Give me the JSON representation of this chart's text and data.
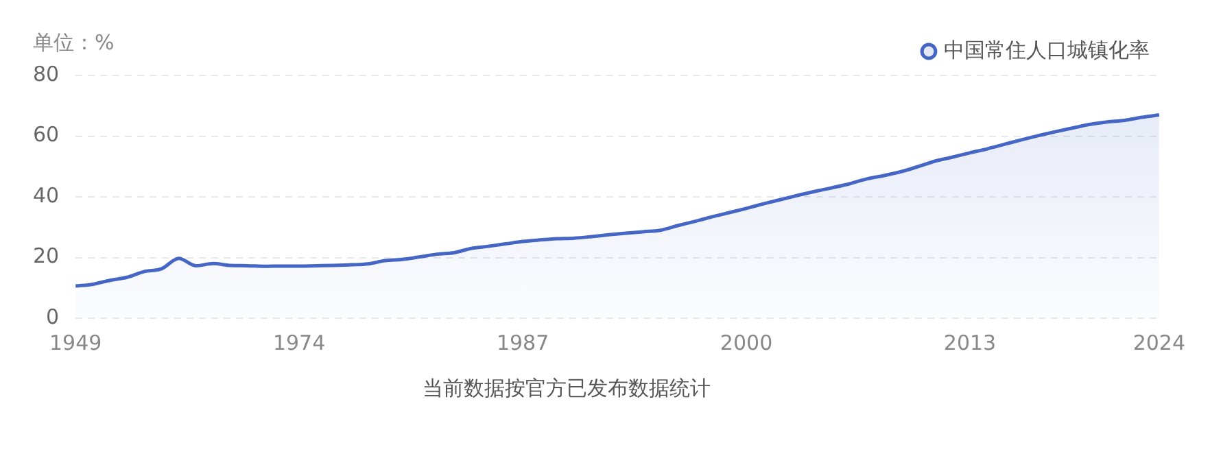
{
  "chart_data": {
    "type": "area",
    "ylabel": "单位：%",
    "annotations": [
      "当前数据按官方已发布数据统计"
    ],
    "categories": [
      "1949",
      null,
      null,
      null,
      null,
      null,
      null,
      null,
      null,
      null,
      null,
      null,
      null,
      "1974",
      null,
      null,
      null,
      null,
      null,
      null,
      null,
      null,
      null,
      null,
      null,
      null,
      "1987",
      null,
      null,
      null,
      null,
      null,
      null,
      null,
      null,
      null,
      null,
      null,
      null,
      "2000",
      null,
      null,
      null,
      null,
      null,
      null,
      null,
      null,
      null,
      null,
      null,
      null,
      "2013",
      null,
      null,
      null,
      null,
      null,
      null,
      null,
      null,
      null,
      null,
      "2024"
    ],
    "series": [
      {
        "name": "中国常住人口城镇化率",
        "color": "#4566c4",
        "values": [
          10.6,
          11.2,
          12.5,
          13.5,
          15.4,
          16.3,
          19.7,
          17.3,
          18.0,
          17.4,
          17.3,
          17.1,
          17.2,
          17.2,
          17.3,
          17.4,
          17.6,
          17.9,
          19.0,
          19.4,
          20.2,
          21.1,
          21.6,
          23.0,
          23.7,
          24.5,
          25.3,
          25.8,
          26.2,
          26.4,
          26.9,
          27.5,
          28.0,
          28.5,
          29.0,
          30.5,
          31.9,
          33.4,
          34.8,
          36.2,
          37.7,
          39.1,
          40.5,
          41.8,
          43.0,
          44.3,
          45.9,
          47.0,
          48.3,
          50.0,
          51.8,
          53.1,
          54.5,
          55.8,
          57.3,
          58.8,
          60.2,
          61.5,
          62.7,
          63.9,
          64.7,
          65.2,
          66.2,
          67.0
        ]
      }
    ],
    "ylim": [
      0,
      80
    ],
    "yticks": [
      0,
      20,
      40,
      60,
      80
    ],
    "grid": "y",
    "legend": "top right"
  }
}
